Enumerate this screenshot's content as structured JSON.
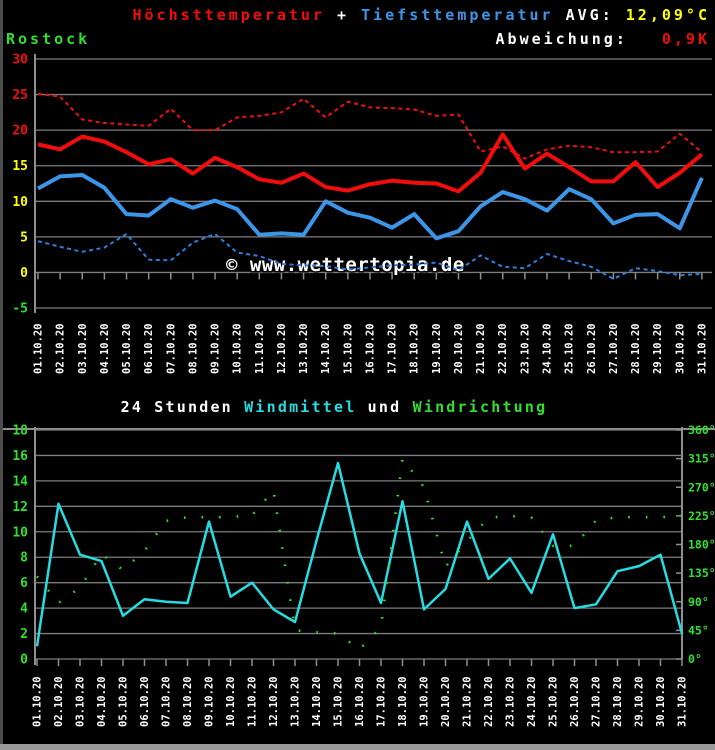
{
  "header": {
    "series1_label": "Höchsttemperatur",
    "plus": " + ",
    "series2_label": "Tiefsttemperatur",
    "avg_label": " AVG: ",
    "avg_value": "12,09°C",
    "station": "Rostock",
    "deviation_label": "Abweichung:",
    "deviation_value": "0,9K"
  },
  "watermark": "© www.wettertopia.de",
  "wind_title": {
    "part1": "24 Stunden ",
    "part2": "Windmittel",
    "part3": " und ",
    "part4": "Windrichtung"
  },
  "colors": {
    "red": "#f20d0d",
    "blue": "#3d95e8",
    "blue_dashed": "#2b7fe0",
    "yellow": "#ffff00",
    "green": "#30e030",
    "cyan": "#25dce2",
    "white": "#ffffff",
    "grid": "#7d7d7d",
    "axis": "#8f8f8f"
  },
  "chart_data": [
    {
      "type": "line",
      "title": "Höchsttemperatur + Tiefsttemperatur",
      "ylabel": "°C",
      "ylim": [
        -5,
        30
      ],
      "grid": true,
      "yticks": [
        30,
        25,
        20,
        15,
        10,
        5,
        0,
        -5
      ],
      "ytick_colors": [
        "#f20d0d",
        "#f20d0d",
        "#f20d0d",
        "#ffff00",
        "#ffff00",
        "#ffff00",
        "#ffff00",
        "#30e030"
      ],
      "categories": [
        "01.10.20",
        "02.10.20",
        "03.10.20",
        "04.10.20",
        "05.10.20",
        "06.10.20",
        "07.10.20",
        "08.10.20",
        "09.10.20",
        "10.10.20",
        "11.10.20",
        "12.10.20",
        "13.10.20",
        "14.10.20",
        "15.10.20",
        "16.10.20",
        "17.10.20",
        "18.10.20",
        "19.10.20",
        "20.10.20",
        "21.10.20",
        "22.10.20",
        "23.10.20",
        "24.10.20",
        "25.10.20",
        "26.10.20",
        "27.10.20",
        "28.10.20",
        "29.10.20",
        "30.10.20",
        "31.10.20"
      ],
      "series": [
        {
          "name": "hoechsttemperatur-mittel",
          "style": "dashed",
          "width": 2,
          "color": "#f20d0d",
          "values": [
            25.1,
            24.7,
            21.5,
            21.0,
            20.8,
            20.6,
            23.0,
            20.0,
            20.0,
            21.8,
            22.0,
            22.5,
            24.4,
            21.8,
            24.0,
            23.2,
            23.1,
            22.9,
            22.0,
            22.2,
            17.0,
            17.7,
            16.0,
            17.3,
            17.8,
            17.6,
            16.9,
            16.9,
            17.0,
            19.5,
            16.9
          ]
        },
        {
          "name": "hoechsttemperatur",
          "style": "solid",
          "width": 4,
          "color": "#f20d0d",
          "values": [
            18.0,
            17.3,
            19.1,
            18.4,
            16.9,
            15.2,
            15.9,
            13.9,
            16.1,
            14.8,
            13.1,
            12.6,
            13.9,
            12.0,
            11.5,
            12.4,
            12.9,
            12.6,
            12.5,
            11.4,
            14.0,
            19.4,
            14.6,
            16.7,
            14.8,
            12.8,
            12.8,
            15.5,
            12.0,
            14.0,
            16.6
          ]
        },
        {
          "name": "tiefsttemperatur",
          "style": "solid",
          "width": 4,
          "color": "#3d95e8",
          "values": [
            11.8,
            13.5,
            13.7,
            11.9,
            8.2,
            8.0,
            10.3,
            9.1,
            10.1,
            8.9,
            5.3,
            5.5,
            5.3,
            10.0,
            8.4,
            7.7,
            6.3,
            8.2,
            4.8,
            5.8,
            9.3,
            11.3,
            10.3,
            8.7,
            11.7,
            10.3,
            6.9,
            8.1,
            8.2,
            6.2,
            13.3
          ]
        },
        {
          "name": "tiefsttemperatur-mittel",
          "style": "dashed",
          "width": 2,
          "color": "#2b7fe0",
          "values": [
            4.4,
            3.6,
            2.9,
            3.5,
            5.4,
            1.8,
            1.7,
            4.2,
            5.4,
            2.8,
            2.3,
            1.2,
            1.0,
            0.9,
            0.4,
            0.7,
            1.0,
            1.1,
            1.4,
            0.3,
            2.4,
            0.8,
            0.6,
            2.6,
            1.6,
            0.8,
            -0.9,
            0.6,
            0.2,
            -0.4,
            -0.2
          ]
        }
      ]
    },
    {
      "type": "line",
      "title": "24 Stunden Windmittel und Windrichtung",
      "grid": true,
      "left_axis": {
        "ylim": [
          0,
          18
        ],
        "ticks": [
          18,
          16,
          14,
          12,
          10,
          8,
          6,
          4,
          2,
          0
        ],
        "color": "#30e030"
      },
      "right_axis": {
        "ylim": [
          0,
          360
        ],
        "ticks": [
          360,
          315,
          270,
          225,
          180,
          135,
          90,
          45,
          0
        ],
        "suffix": "°",
        "color": "#30e030"
      },
      "categories": [
        "01.10.20",
        "02.10.20",
        "03.10.20",
        "04.10.20",
        "05.10.20",
        "06.10.20",
        "07.10.20",
        "08.10.20",
        "09.10.20",
        "10.10.20",
        "11.10.20",
        "12.10.20",
        "13.10.20",
        "14.10.20",
        "15.10.20",
        "16.10.20",
        "17.10.20",
        "18.10.20",
        "19.10.20",
        "20.10.20",
        "21.10.20",
        "22.10.20",
        "23.10.20",
        "24.10.20",
        "25.10.20",
        "26.10.20",
        "27.10.20",
        "28.10.20",
        "29.10.20",
        "30.10.20",
        "31.10.20"
      ],
      "series": [
        {
          "name": "windmittel",
          "style": "solid",
          "width": 2.5,
          "axis": "left",
          "color": "#25dce2",
          "values": [
            1.0,
            12.2,
            8.2,
            7.7,
            3.4,
            4.7,
            4.5,
            4.4,
            10.8,
            4.9,
            6.0,
            3.9,
            2.9,
            9.3,
            15.4,
            8.3,
            4.4,
            12.4,
            3.9,
            5.5,
            10.8,
            6.3,
            7.9,
            5.2,
            9.8,
            4.0,
            4.3,
            6.9,
            7.3,
            8.2,
            2.0
          ]
        },
        {
          "name": "windrichtung",
          "style": "dots",
          "width": 2.6,
          "axis": "right",
          "color": "#30e030",
          "values": [
            130,
            88,
            112,
            165,
            140,
            170,
            217,
            223,
            223,
            223,
            226,
            265,
            45,
            42,
            40,
            15,
            50,
            315,
            270,
            145,
            185,
            222,
            225,
            222,
            178,
            178,
            218,
            223,
            223,
            223,
            225
          ]
        }
      ]
    }
  ]
}
